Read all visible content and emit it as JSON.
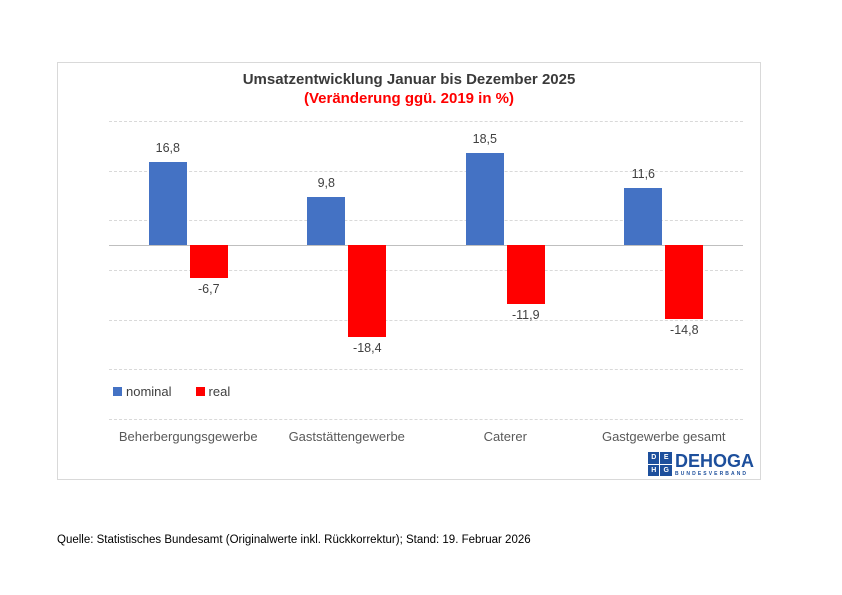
{
  "page": {
    "background": "#ffffff"
  },
  "chart_data": {
    "type": "bar",
    "title": "Umsatzentwicklung Januar bis Dezember 2025",
    "subtitle": "(Veränderung ggü. 2019 in %)",
    "title_color": "#3a3a3a",
    "subtitle_color": "#ff0000",
    "categories": [
      "Beherbergungsgewerbe",
      "Gaststättengewerbe",
      "Caterer",
      "Gastgewerbe gesamt"
    ],
    "series": [
      {
        "name": "nominal",
        "color": "#4472C4",
        "values": [
          16.8,
          9.8,
          18.5,
          11.6
        ]
      },
      {
        "name": "real",
        "color": "#FF0000",
        "values": [
          -6.7,
          -18.4,
          -11.9,
          -14.8
        ]
      }
    ],
    "value_labels": {
      "nominal": [
        "16,8",
        "9,8",
        "18,5",
        "11,6"
      ],
      "real": [
        "-6,7",
        "-18,4",
        "-11,9",
        "-14,8"
      ]
    },
    "decimal_separator": ",",
    "ylim": [
      -35,
      25
    ],
    "gridline_interval": 10,
    "grid": true,
    "legend_position": "bottom-left-inside",
    "grid_color": "#d9d9d9",
    "zero_line_color": "#bfbfbf"
  },
  "logo": {
    "name": "DEHOGA",
    "subtitle": "BUNDESVERBAND",
    "monogram": [
      "D",
      "E",
      "H",
      "G"
    ],
    "color": "#1d4f9c"
  },
  "source_note": "Quelle: Statistisches Bundesamt (Originalwerte inkl. Rückkorrektur); Stand: 19. Februar 2026"
}
